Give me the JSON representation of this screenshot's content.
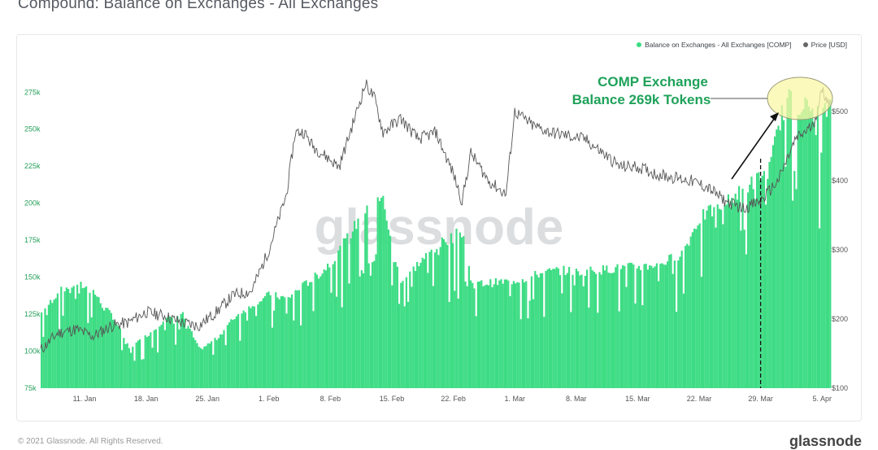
{
  "page": {
    "title": "Compound: Balance on Exchanges - All Exchanges",
    "copyright": "© 2021 Glassnode. All Rights Reserved.",
    "brand": "glassnode",
    "watermark": "glassnode"
  },
  "legend": {
    "items": [
      {
        "label": "Balance on Exchanges - All Exchanges [COMP]",
        "color": "#3ddc84"
      },
      {
        "label": "Price [USD]",
        "color": "#666666"
      }
    ]
  },
  "annotation": {
    "line1": "COMP Exchange",
    "line2": "Balance 269k Tokens"
  },
  "chart_data": {
    "type": "area",
    "x_tick_labels": [
      "11. Jan",
      "18. Jan",
      "25. Jan",
      "1. Feb",
      "8. Feb",
      "15. Feb",
      "22. Feb",
      "1. Mar",
      "8. Mar",
      "15. Mar",
      "22. Mar",
      "29. Mar",
      "5. Apr"
    ],
    "x_range": [
      "2021-01-06",
      "2021-04-06"
    ],
    "y_left": {
      "ticks": [
        "75k",
        "100k",
        "125k",
        "150k",
        "175k",
        "200k",
        "225k",
        "250k",
        "275k"
      ],
      "ylim": [
        75000,
        290000
      ]
    },
    "y_right": {
      "ticks": [
        "$100",
        "$200",
        "$300",
        "$400",
        "$500"
      ],
      "ylim": [
        100,
        560
      ]
    },
    "series": [
      {
        "name": "Balance on Exchanges - All Exchanges [COMP]",
        "axis": "left",
        "color": "#3ddc84",
        "x": [
          "2021-01-06",
          "2021-01-08",
          "2021-01-10",
          "2021-01-12",
          "2021-01-13",
          "2021-01-14",
          "2021-01-16",
          "2021-01-18",
          "2021-01-20",
          "2021-01-22",
          "2021-01-24",
          "2021-01-26",
          "2021-01-28",
          "2021-01-30",
          "2021-02-01",
          "2021-02-03",
          "2021-02-05",
          "2021-02-07",
          "2021-02-09",
          "2021-02-11",
          "2021-02-13",
          "2021-02-14",
          "2021-02-15",
          "2021-02-16",
          "2021-02-18",
          "2021-02-20",
          "2021-02-22",
          "2021-02-23",
          "2021-02-24",
          "2021-02-26",
          "2021-02-28",
          "2021-03-02",
          "2021-03-04",
          "2021-03-06",
          "2021-03-08",
          "2021-03-10",
          "2021-03-12",
          "2021-03-14",
          "2021-03-16",
          "2021-03-18",
          "2021-03-20",
          "2021-03-22",
          "2021-03-24",
          "2021-03-26",
          "2021-03-28",
          "2021-03-30",
          "2021-03-31",
          "2021-04-01",
          "2021-04-02",
          "2021-04-03",
          "2021-04-04",
          "2021-04-05",
          "2021-04-06"
        ],
        "values": [
          128000,
          143000,
          149000,
          143000,
          132000,
          127000,
          103000,
          112000,
          123000,
          128000,
          102000,
          110000,
          125000,
          134000,
          141000,
          138000,
          148000,
          157000,
          172000,
          192000,
          205000,
          208000,
          168000,
          151000,
          163000,
          175000,
          182000,
          185000,
          148000,
          149000,
          150000,
          152000,
          156000,
          158000,
          157000,
          158000,
          159000,
          160000,
          161000,
          164000,
          170000,
          195000,
          202000,
          210000,
          220000,
          230000,
          262000,
          278000,
          276000,
          273000,
          270000,
          269000,
          271000
        ]
      },
      {
        "name": "Price [USD]",
        "axis": "right",
        "color": "#666666",
        "x": [
          "2021-01-06",
          "2021-01-08",
          "2021-01-10",
          "2021-01-12",
          "2021-01-14",
          "2021-01-16",
          "2021-01-18",
          "2021-01-20",
          "2021-01-22",
          "2021-01-24",
          "2021-01-26",
          "2021-01-28",
          "2021-01-30",
          "2021-02-01",
          "2021-02-02",
          "2021-02-03",
          "2021-02-04",
          "2021-02-05",
          "2021-02-06",
          "2021-02-08",
          "2021-02-09",
          "2021-02-11",
          "2021-02-12",
          "2021-02-13",
          "2021-02-14",
          "2021-02-16",
          "2021-02-18",
          "2021-02-20",
          "2021-02-22",
          "2021-02-23",
          "2021-02-24",
          "2021-02-26",
          "2021-02-28",
          "2021-03-01",
          "2021-03-03",
          "2021-03-05",
          "2021-03-07",
          "2021-03-09",
          "2021-03-11",
          "2021-03-13",
          "2021-03-15",
          "2021-03-17",
          "2021-03-19",
          "2021-03-21",
          "2021-03-23",
          "2021-03-25",
          "2021-03-27",
          "2021-03-29",
          "2021-03-31",
          "2021-04-02",
          "2021-04-04",
          "2021-04-05",
          "2021-04-06"
        ],
        "values": [
          155,
          180,
          185,
          175,
          190,
          195,
          210,
          205,
          195,
          190,
          210,
          235,
          240,
          300,
          340,
          380,
          470,
          470,
          450,
          430,
          420,
          500,
          540,
          520,
          470,
          490,
          460,
          470,
          410,
          370,
          440,
          400,
          380,
          500,
          480,
          470,
          465,
          460,
          440,
          420,
          420,
          410,
          405,
          400,
          390,
          370,
          360,
          370,
          400,
          460,
          480,
          530,
          510
        ]
      }
    ],
    "annotation_dashed_date": "2021-03-29",
    "grid": false,
    "legend_position": "top-right"
  }
}
